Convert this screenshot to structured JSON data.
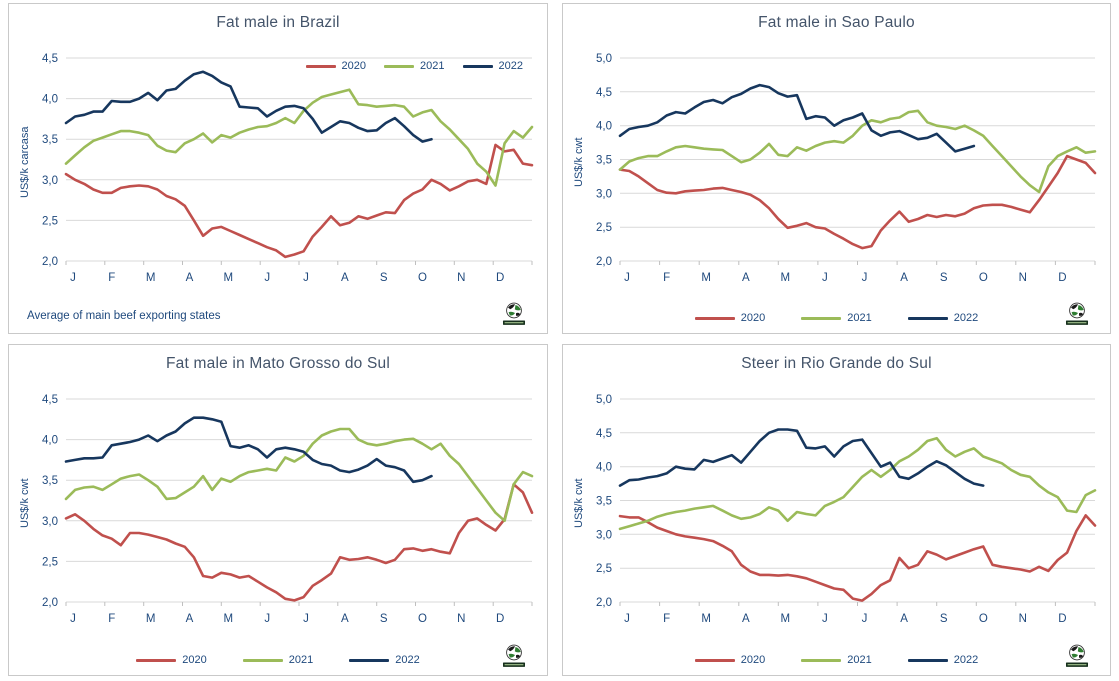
{
  "colors": {
    "2020": "#C0504D",
    "2021": "#9BBB59",
    "2022": "#17375E",
    "grid": "#D9D9D9",
    "tick": "#BFBFBF",
    "axis_text": "#1F497D",
    "title_text": "#44546A",
    "panel_border": "#C9C9C9"
  },
  "chart_data": [
    {
      "type": "line",
      "title": "Fat male in Brazil",
      "ylabel": "US$/k carcasa",
      "ylim": [
        2.0,
        4.5
      ],
      "ystep": 0.5,
      "ytick_labels": [
        "4,5",
        "4,0",
        "3,5",
        "3,0",
        "2,5",
        "2,0"
      ],
      "categories": [
        "J",
        "F",
        "M",
        "A",
        "M",
        "J",
        "J",
        "A",
        "S",
        "O",
        "N",
        "D"
      ],
      "weeks": 52,
      "grid": true,
      "legend_position": "top-right",
      "footnote": "Average  of main beef exporting states",
      "series": [
        {
          "name": "2020",
          "values": [
            3.07,
            3.0,
            2.95,
            2.88,
            2.84,
            2.84,
            2.9,
            2.92,
            2.93,
            2.92,
            2.88,
            2.8,
            2.76,
            2.68,
            2.5,
            2.31,
            2.4,
            2.42,
            2.37,
            2.32,
            2.27,
            2.22,
            2.17,
            2.13,
            2.05,
            2.08,
            2.12,
            2.3,
            2.42,
            2.55,
            2.44,
            2.47,
            2.55,
            2.52,
            2.56,
            2.6,
            2.59,
            2.75,
            2.83,
            2.88,
            3.0,
            2.95,
            2.87,
            2.92,
            2.98,
            3.0,
            2.95,
            3.43,
            3.35,
            3.37,
            3.2,
            3.18
          ]
        },
        {
          "name": "2021",
          "values": [
            3.2,
            3.3,
            3.4,
            3.48,
            3.52,
            3.56,
            3.6,
            3.6,
            3.58,
            3.55,
            3.42,
            3.36,
            3.34,
            3.45,
            3.5,
            3.57,
            3.46,
            3.55,
            3.52,
            3.58,
            3.62,
            3.65,
            3.66,
            3.7,
            3.76,
            3.7,
            3.85,
            3.95,
            4.02,
            4.05,
            4.08,
            4.11,
            3.93,
            3.92,
            3.9,
            3.91,
            3.92,
            3.9,
            3.78,
            3.83,
            3.86,
            3.72,
            3.62,
            3.5,
            3.38,
            3.2,
            3.1,
            2.93,
            3.45,
            3.6,
            3.52,
            3.65
          ]
        },
        {
          "name": "2022",
          "values": [
            3.7,
            3.78,
            3.8,
            3.84,
            3.84,
            3.97,
            3.96,
            3.96,
            4.0,
            4.07,
            3.98,
            4.1,
            4.12,
            4.22,
            4.3,
            4.33,
            4.28,
            4.2,
            4.15,
            3.9,
            3.89,
            3.88,
            3.78,
            3.85,
            3.9,
            3.91,
            3.88,
            3.75,
            3.58,
            3.65,
            3.72,
            3.7,
            3.64,
            3.6,
            3.61,
            3.7,
            3.76,
            3.66,
            3.55,
            3.47,
            3.5
          ]
        }
      ]
    },
    {
      "type": "line",
      "title": "Fat male in Sao Paulo",
      "ylabel": "US$/k cwt",
      "ylim": [
        2.0,
        5.0
      ],
      "ystep": 0.5,
      "ytick_labels": [
        "5,0",
        "4,5",
        "4,0",
        "3,5",
        "3,0",
        "2,5",
        "2,0"
      ],
      "categories": [
        "J",
        "F",
        "M",
        "A",
        "M",
        "J",
        "J",
        "A",
        "S",
        "O",
        "N",
        "D"
      ],
      "weeks": 52,
      "grid": true,
      "legend_position": "bottom",
      "footnote": "",
      "series": [
        {
          "name": "2020",
          "values": [
            3.35,
            3.33,
            3.25,
            3.15,
            3.05,
            3.01,
            3.0,
            3.03,
            3.04,
            3.05,
            3.07,
            3.08,
            3.05,
            3.02,
            2.98,
            2.9,
            2.78,
            2.62,
            2.49,
            2.52,
            2.56,
            2.5,
            2.48,
            2.4,
            2.33,
            2.25,
            2.19,
            2.22,
            2.45,
            2.6,
            2.73,
            2.58,
            2.62,
            2.68,
            2.65,
            2.68,
            2.66,
            2.7,
            2.78,
            2.82,
            2.83,
            2.83,
            2.8,
            2.76,
            2.72,
            2.9,
            3.1,
            3.3,
            3.55,
            3.5,
            3.45,
            3.3
          ]
        },
        {
          "name": "2021",
          "values": [
            3.35,
            3.47,
            3.52,
            3.55,
            3.55,
            3.62,
            3.68,
            3.7,
            3.68,
            3.66,
            3.65,
            3.64,
            3.55,
            3.46,
            3.5,
            3.6,
            3.73,
            3.57,
            3.55,
            3.68,
            3.63,
            3.7,
            3.75,
            3.77,
            3.75,
            3.85,
            4.0,
            4.08,
            4.05,
            4.1,
            4.12,
            4.2,
            4.22,
            4.05,
            4.0,
            3.98,
            3.95,
            4.0,
            3.93,
            3.85,
            3.7,
            3.55,
            3.4,
            3.25,
            3.12,
            3.02,
            3.4,
            3.55,
            3.62,
            3.68,
            3.6,
            3.62
          ]
        },
        {
          "name": "2022",
          "values": [
            3.85,
            3.95,
            3.98,
            4.0,
            4.05,
            4.15,
            4.2,
            4.18,
            4.27,
            4.35,
            4.38,
            4.33,
            4.42,
            4.47,
            4.55,
            4.6,
            4.57,
            4.48,
            4.43,
            4.45,
            4.1,
            4.14,
            4.12,
            4.0,
            4.08,
            4.12,
            4.18,
            3.93,
            3.85,
            3.9,
            3.92,
            3.86,
            3.8,
            3.82,
            3.88,
            3.75,
            3.62,
            3.66,
            3.7
          ]
        }
      ]
    },
    {
      "type": "line",
      "title": "Fat male in Mato Grosso do Sul",
      "ylabel": "US$/k cwt",
      "ylim": [
        2.0,
        4.5
      ],
      "ystep": 0.5,
      "ytick_labels": [
        "4,5",
        "4,0",
        "3,5",
        "3,0",
        "2,5",
        "2,0"
      ],
      "categories": [
        "J",
        "F",
        "M",
        "A",
        "M",
        "J",
        "J",
        "A",
        "S",
        "O",
        "N",
        "D"
      ],
      "weeks": 52,
      "grid": true,
      "legend_position": "bottom",
      "footnote": "",
      "series": [
        {
          "name": "2020",
          "values": [
            3.03,
            3.08,
            3.0,
            2.9,
            2.82,
            2.78,
            2.7,
            2.85,
            2.85,
            2.83,
            2.8,
            2.77,
            2.72,
            2.68,
            2.55,
            2.32,
            2.3,
            2.36,
            2.34,
            2.3,
            2.32,
            2.25,
            2.18,
            2.12,
            2.04,
            2.02,
            2.06,
            2.2,
            2.27,
            2.35,
            2.55,
            2.52,
            2.53,
            2.55,
            2.52,
            2.48,
            2.52,
            2.65,
            2.66,
            2.63,
            2.65,
            2.62,
            2.6,
            2.85,
            3.0,
            3.03,
            2.95,
            2.88,
            3.02,
            3.45,
            3.35,
            3.1
          ]
        },
        {
          "name": "2021",
          "values": [
            3.27,
            3.38,
            3.41,
            3.42,
            3.38,
            3.45,
            3.52,
            3.55,
            3.57,
            3.5,
            3.42,
            3.27,
            3.28,
            3.35,
            3.42,
            3.55,
            3.38,
            3.52,
            3.48,
            3.55,
            3.6,
            3.62,
            3.64,
            3.62,
            3.78,
            3.73,
            3.8,
            3.95,
            4.05,
            4.1,
            4.13,
            4.13,
            4.0,
            3.95,
            3.93,
            3.95,
            3.98,
            4.0,
            4.01,
            3.95,
            3.88,
            3.95,
            3.8,
            3.7,
            3.55,
            3.4,
            3.25,
            3.1,
            3.0,
            3.45,
            3.6,
            3.55
          ]
        },
        {
          "name": "2022",
          "values": [
            3.73,
            3.75,
            3.77,
            3.77,
            3.78,
            3.93,
            3.95,
            3.97,
            4.0,
            4.05,
            3.98,
            4.05,
            4.1,
            4.2,
            4.27,
            4.27,
            4.25,
            4.22,
            3.92,
            3.9,
            3.93,
            3.88,
            3.78,
            3.88,
            3.9,
            3.88,
            3.85,
            3.75,
            3.7,
            3.68,
            3.62,
            3.6,
            3.63,
            3.68,
            3.76,
            3.68,
            3.66,
            3.62,
            3.48,
            3.5,
            3.55
          ]
        }
      ]
    },
    {
      "type": "line",
      "title": "Steer  in Rio Grande do Sul",
      "ylabel": "US$/k cwt",
      "ylim": [
        2.0,
        5.0
      ],
      "ystep": 0.5,
      "ytick_labels": [
        "5,0",
        "4,5",
        "4,0",
        "3,5",
        "3,0",
        "2,5",
        "2,0"
      ],
      "categories": [
        "J",
        "F",
        "M",
        "A",
        "M",
        "J",
        "J",
        "A",
        "S",
        "O",
        "N",
        "D"
      ],
      "weeks": 52,
      "grid": true,
      "legend_position": "bottom",
      "footnote": "",
      "series": [
        {
          "name": "2020",
          "values": [
            3.27,
            3.25,
            3.25,
            3.18,
            3.1,
            3.05,
            3.0,
            2.97,
            2.95,
            2.93,
            2.9,
            2.83,
            2.75,
            2.55,
            2.45,
            2.4,
            2.4,
            2.39,
            2.4,
            2.38,
            2.35,
            2.3,
            2.25,
            2.2,
            2.18,
            2.05,
            2.02,
            2.12,
            2.25,
            2.32,
            2.65,
            2.5,
            2.55,
            2.75,
            2.7,
            2.63,
            2.68,
            2.73,
            2.78,
            2.82,
            2.55,
            2.52,
            2.5,
            2.48,
            2.45,
            2.52,
            2.46,
            2.62,
            2.73,
            3.05,
            3.28,
            3.13
          ]
        },
        {
          "name": "2021",
          "values": [
            3.08,
            3.12,
            3.16,
            3.2,
            3.26,
            3.3,
            3.33,
            3.35,
            3.38,
            3.4,
            3.42,
            3.35,
            3.28,
            3.23,
            3.25,
            3.3,
            3.4,
            3.35,
            3.2,
            3.33,
            3.3,
            3.28,
            3.42,
            3.48,
            3.55,
            3.7,
            3.85,
            3.95,
            3.85,
            3.95,
            4.08,
            4.15,
            4.25,
            4.38,
            4.42,
            4.25,
            4.15,
            4.22,
            4.27,
            4.15,
            4.1,
            4.05,
            3.95,
            3.88,
            3.85,
            3.72,
            3.62,
            3.55,
            3.35,
            3.33,
            3.58,
            3.65
          ]
        },
        {
          "name": "2022",
          "values": [
            3.72,
            3.8,
            3.81,
            3.84,
            3.86,
            3.9,
            4.0,
            3.97,
            3.96,
            4.1,
            4.07,
            4.12,
            4.17,
            4.06,
            4.22,
            4.38,
            4.5,
            4.55,
            4.55,
            4.53,
            4.28,
            4.27,
            4.3,
            4.15,
            4.3,
            4.38,
            4.4,
            4.2,
            4.0,
            4.06,
            3.85,
            3.82,
            3.9,
            4.0,
            4.08,
            4.02,
            3.92,
            3.82,
            3.75,
            3.72
          ]
        }
      ]
    }
  ]
}
